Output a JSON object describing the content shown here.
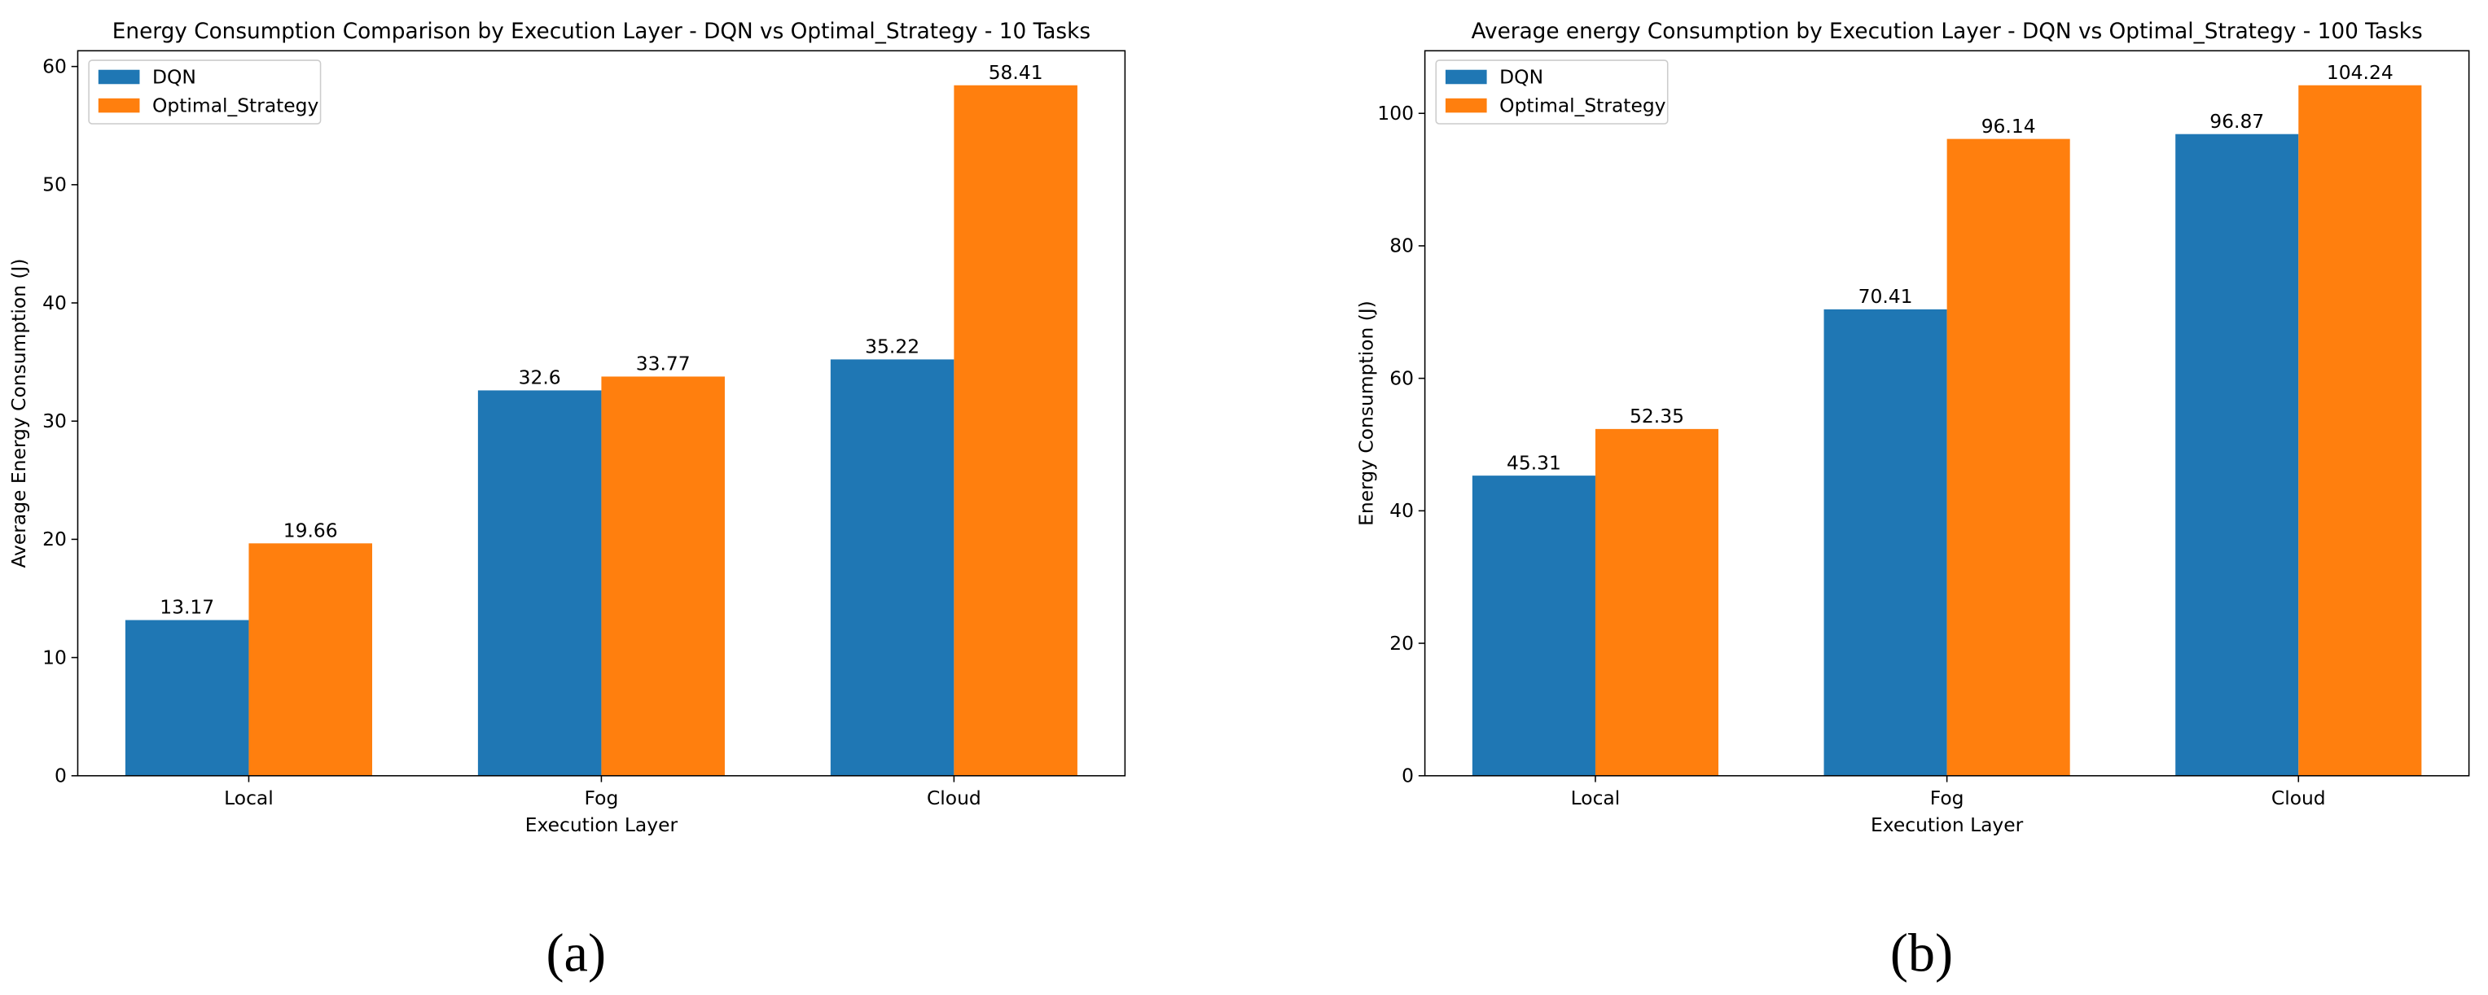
{
  "chart_data": [
    {
      "type": "bar",
      "panel_label": "(a)",
      "title": "Energy Consumption Comparison by Execution Layer - DQN vs Optimal_Strategy - 10 Tasks",
      "x_label": "Execution Layer",
      "y_label": "Average Energy Consumption (J)",
      "categories": [
        "Local",
        "Fog",
        "Cloud"
      ],
      "series": [
        {
          "name": "DQN",
          "color": "#1f77b4",
          "values": [
            13.17,
            32.6,
            35.22
          ]
        },
        {
          "name": "Optimal_Strategy",
          "color": "#ff7f0e",
          "values": [
            19.66,
            33.77,
            58.41
          ]
        }
      ],
      "ylim": [
        0,
        61.33
      ],
      "yticks": [
        0,
        10,
        20,
        30,
        40,
        50,
        60
      ],
      "legend": "upper left"
    },
    {
      "type": "bar",
      "panel_label": "(b)",
      "title": "Average energy Consumption by Execution Layer - DQN vs Optimal_Strategy - 100 Tasks",
      "x_label": "Execution Layer",
      "y_label": "Energy Consumption (J)",
      "categories": [
        "Local",
        "Fog",
        "Cloud"
      ],
      "series": [
        {
          "name": "DQN",
          "color": "#1f77b4",
          "values": [
            45.31,
            70.41,
            96.87
          ]
        },
        {
          "name": "Optimal_Strategy",
          "color": "#ff7f0e",
          "values": [
            52.35,
            96.14,
            104.24
          ]
        }
      ],
      "ylim": [
        0,
        109.45
      ],
      "yticks": [
        0,
        20,
        40,
        60,
        80,
        100
      ],
      "legend": "upper left"
    }
  ]
}
